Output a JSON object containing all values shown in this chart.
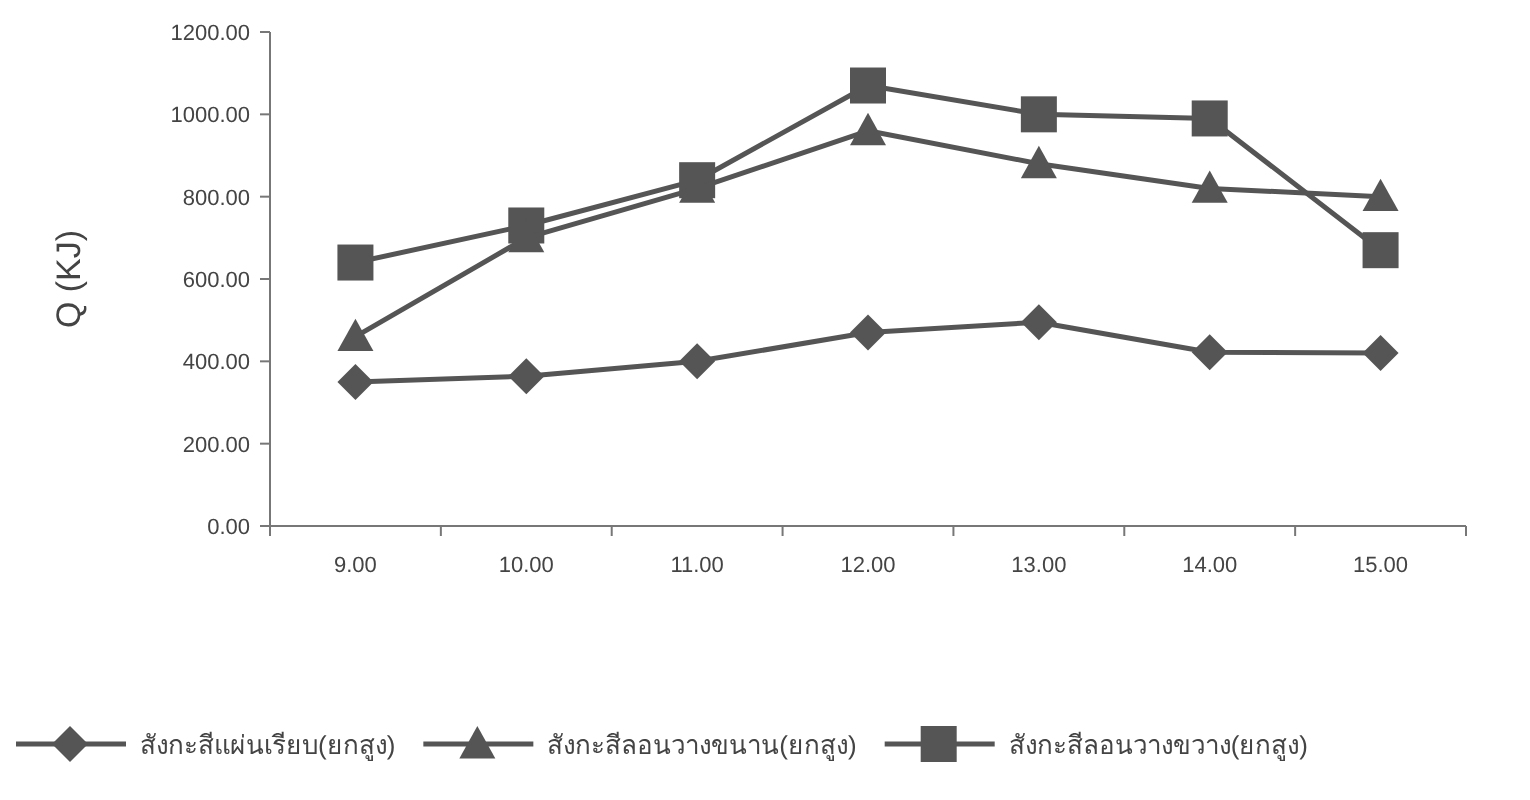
{
  "chart_data": {
    "type": "line",
    "ylabel": "Q (KJ)",
    "categories": [
      "9.00",
      "10.00",
      "11.00",
      "12.00",
      "13.00",
      "14.00",
      "15.00"
    ],
    "ylim": [
      0,
      1200
    ],
    "yticks": [
      {
        "value": 0,
        "label": "0.00"
      },
      {
        "value": 200,
        "label": "200.00"
      },
      {
        "value": 400,
        "label": "400.00"
      },
      {
        "value": 600,
        "label": "600.00"
      },
      {
        "value": 800,
        "label": "800.00"
      },
      {
        "value": 1000,
        "label": "1000.00"
      },
      {
        "value": 1200,
        "label": "1200.00"
      }
    ],
    "grid": false,
    "legend": "bottom",
    "series": [
      {
        "name": "สังกะสีแผ่นเรียบ(ยกสูง)",
        "color": "#555555",
        "marker": "diamond",
        "values": [
          350,
          364,
          400,
          470,
          495,
          422,
          420
        ]
      },
      {
        "name": "สังกะสีลอนวางขนาน(ยกสูง)",
        "color": "#555555",
        "marker": "triangle",
        "values": [
          460,
          700,
          820,
          960,
          880,
          820,
          800
        ]
      },
      {
        "name": "สังกะสีลอนวางขวาง(ยกสูง)",
        "color": "#555555",
        "marker": "square",
        "values": [
          640,
          730,
          840,
          1070,
          1000,
          990,
          670
        ]
      }
    ]
  }
}
